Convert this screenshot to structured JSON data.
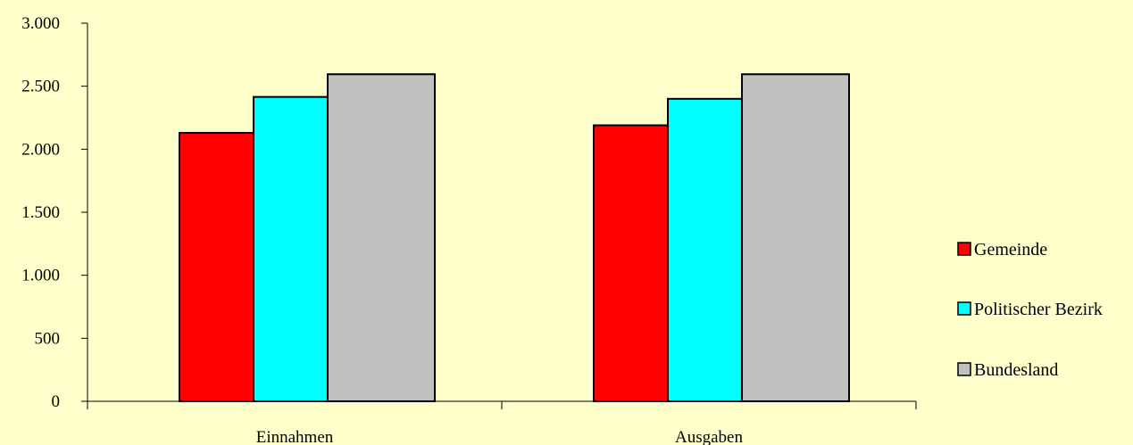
{
  "chart_data": {
    "type": "bar",
    "categories": [
      "Einnahmen",
      "Ausgaben"
    ],
    "series": [
      {
        "name": "Gemeinde",
        "color": "#ff0000",
        "values": [
          2130,
          2190
        ]
      },
      {
        "name": "Politischer Bezirk",
        "color": "#00ffff",
        "values": [
          2415,
          2400
        ]
      },
      {
        "name": "Bundesland",
        "color": "#c0c0c0",
        "values": [
          2595,
          2595
        ]
      }
    ],
    "ylim": [
      0,
      3000
    ],
    "yticks": [
      0,
      500,
      1000,
      1500,
      2000,
      2500,
      3000
    ],
    "ytick_labels": [
      "0",
      "500",
      "1.000",
      "1.500",
      "2.000",
      "2.500",
      "3.000"
    ],
    "grid": false,
    "legend_position": "right",
    "background": "#ffffcc"
  }
}
